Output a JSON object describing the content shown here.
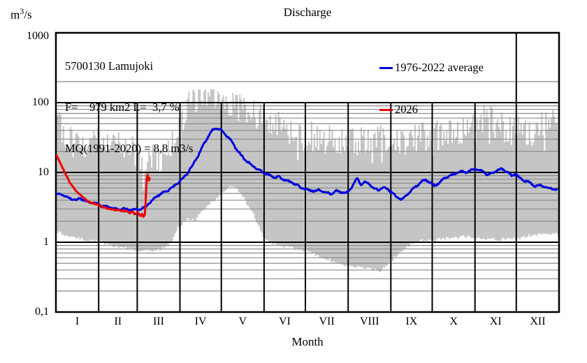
{
  "page": {
    "title": "Discharge"
  },
  "y_axis": {
    "unit": {
      "base": "m",
      "exp": "3",
      "rest": "/s"
    },
    "ticks": [
      {
        "label": "1000",
        "value": 1000
      },
      {
        "label": "100",
        "value": 100
      },
      {
        "label": "10",
        "value": 10
      },
      {
        "label": "1",
        "value": 1
      },
      {
        "label": "0,1",
        "value": 0.1
      }
    ],
    "major_gridlines": [
      100,
      10,
      1
    ],
    "minor_gridlines": [
      0.2,
      0.3,
      0.4,
      0.5,
      0.6,
      0.7,
      0.8,
      0.9,
      2,
      3,
      4,
      5,
      6,
      7,
      8,
      9,
      20,
      30,
      40,
      50,
      60,
      70,
      80,
      90,
      200
    ]
  },
  "x_axis": {
    "label": "Month",
    "month_labels": [
      "I",
      "II",
      "III",
      "IV",
      "V",
      "VI",
      "VII",
      "VIII",
      "IX",
      "X",
      "XI",
      "XII"
    ],
    "month_days": [
      31,
      28,
      31,
      30,
      31,
      30,
      31,
      31,
      30,
      31,
      30,
      31
    ]
  },
  "station_box": {
    "line1": "5700130 Lamujoki",
    "line2": "F=    979 km2 L=  3,7 %",
    "line3": "MQ(1991-2020) = 8,8 m3/s"
  },
  "legend": [
    {
      "label": "1976-2022 average",
      "color": "#0000dd"
    },
    {
      "label": "2026",
      "color": "#ee0000"
    }
  ],
  "colors": {
    "band": "#c5c5c5",
    "minor_grid": "#8a8a8a",
    "major_grid": "#000000",
    "border": "#000000",
    "background": "#ffffff"
  },
  "chart_data": {
    "type": "line",
    "title": "Discharge",
    "ylabel": "m3/s",
    "xlabel": "Month",
    "y_scale": "log",
    "ylim": [
      0.1,
      1000
    ],
    "x_days": 365,
    "band": {
      "name": "1976-2022 min-max range",
      "color": "#c5c5c5",
      "anchors_day_min_max": [
        [
          1,
          1.45,
          58
        ],
        [
          4,
          1.35,
          42
        ],
        [
          8,
          1.25,
          32
        ],
        [
          12,
          1.2,
          27
        ],
        [
          16,
          1.15,
          30
        ],
        [
          20,
          1.1,
          26
        ],
        [
          25,
          1.05,
          23
        ],
        [
          31,
          1.0,
          26
        ],
        [
          36,
          0.95,
          24
        ],
        [
          41,
          0.9,
          27
        ],
        [
          45,
          0.87,
          30
        ],
        [
          50,
          0.84,
          24
        ],
        [
          55,
          0.8,
          20
        ],
        [
          59,
          0.78,
          18
        ],
        [
          64,
          0.76,
          16
        ],
        [
          70,
          0.76,
          15
        ],
        [
          75,
          0.78,
          14
        ],
        [
          80,
          0.85,
          15
        ],
        [
          84,
          1.0,
          20
        ],
        [
          89,
          1.6,
          34
        ],
        [
          93,
          1.9,
          60
        ],
        [
          97,
          2.2,
          85
        ],
        [
          101,
          2.0,
          105
        ],
        [
          105,
          2.6,
          112
        ],
        [
          109,
          3.1,
          118
        ],
        [
          113,
          3.6,
          114
        ],
        [
          118,
          4.3,
          108
        ],
        [
          123,
          5.6,
          98
        ],
        [
          127,
          6.5,
          92
        ],
        [
          131,
          6.0,
          86
        ],
        [
          135,
          5.0,
          80
        ],
        [
          139,
          3.6,
          72
        ],
        [
          143,
          2.7,
          70
        ],
        [
          147,
          1.8,
          62
        ],
        [
          151,
          1.25,
          55
        ],
        [
          155,
          1.0,
          47
        ],
        [
          160,
          0.92,
          40
        ],
        [
          165,
          0.88,
          44
        ],
        [
          170,
          0.85,
          36
        ],
        [
          175,
          0.8,
          32
        ],
        [
          180,
          0.78,
          29
        ],
        [
          185,
          0.74,
          31
        ],
        [
          190,
          0.65,
          27
        ],
        [
          195,
          0.6,
          25
        ],
        [
          200,
          0.55,
          29
        ],
        [
          205,
          0.5,
          25
        ],
        [
          210,
          0.46,
          23
        ],
        [
          215,
          0.44,
          25
        ],
        [
          220,
          0.43,
          24
        ],
        [
          228,
          0.42,
          27
        ],
        [
          236,
          0.38,
          29
        ],
        [
          242,
          0.5,
          26
        ],
        [
          248,
          0.65,
          25
        ],
        [
          254,
          0.85,
          27
        ],
        [
          260,
          1.0,
          29
        ],
        [
          266,
          1.05,
          31
        ],
        [
          272,
          1.05,
          29
        ],
        [
          280,
          1.1,
          33
        ],
        [
          288,
          1.15,
          35
        ],
        [
          296,
          1.2,
          37
        ],
        [
          304,
          1.2,
          40
        ],
        [
          308,
          1.18,
          48
        ],
        [
          312,
          1.15,
          55
        ],
        [
          316,
          1.12,
          52
        ],
        [
          320,
          1.1,
          46
        ],
        [
          328,
          1.1,
          40
        ],
        [
          336,
          1.15,
          38
        ],
        [
          344,
          1.25,
          36
        ],
        [
          350,
          1.3,
          38
        ],
        [
          356,
          1.3,
          55
        ],
        [
          361,
          1.3,
          60
        ],
        [
          365,
          1.3,
          52
        ]
      ]
    },
    "series": [
      {
        "name": "1976-2022 average",
        "color": "#0000dd",
        "width": 3,
        "anchors_day_value": [
          [
            1,
            4.8
          ],
          [
            4,
            5.0
          ],
          [
            8,
            4.4
          ],
          [
            12,
            4.2
          ],
          [
            15,
            4.0
          ],
          [
            18,
            4.3
          ],
          [
            22,
            3.85
          ],
          [
            26,
            3.7
          ],
          [
            30,
            3.55
          ],
          [
            34,
            3.3
          ],
          [
            38,
            3.2
          ],
          [
            42,
            3.05
          ],
          [
            46,
            2.95
          ],
          [
            50,
            3.05
          ],
          [
            54,
            2.9
          ],
          [
            58,
            2.95
          ],
          [
            62,
            3.0
          ],
          [
            65,
            3.15
          ],
          [
            68,
            3.6
          ],
          [
            72,
            4.3
          ],
          [
            76,
            4.9
          ],
          [
            80,
            5.3
          ],
          [
            84,
            5.9
          ],
          [
            88,
            6.8
          ],
          [
            92,
            8.0
          ],
          [
            96,
            9.8
          ],
          [
            100,
            13
          ],
          [
            104,
            18
          ],
          [
            108,
            26
          ],
          [
            111,
            33
          ],
          [
            114,
            40
          ],
          [
            117,
            43.5
          ],
          [
            120,
            41
          ],
          [
            123,
            36
          ],
          [
            126,
            31
          ],
          [
            129,
            26
          ],
          [
            132,
            21
          ],
          [
            135,
            17.5
          ],
          [
            138,
            15
          ],
          [
            141,
            13.5
          ],
          [
            144,
            12.2
          ],
          [
            147,
            11
          ],
          [
            150,
            10.3
          ],
          [
            153,
            9.6
          ],
          [
            156,
            9.0
          ],
          [
            159,
            8.4
          ],
          [
            162,
            8.7
          ],
          [
            165,
            8.0
          ],
          [
            168,
            7.6
          ],
          [
            171,
            7.2
          ],
          [
            174,
            6.9
          ],
          [
            177,
            6.2
          ],
          [
            180,
            5.9
          ],
          [
            184,
            5.6
          ],
          [
            188,
            5.4
          ],
          [
            192,
            5.6
          ],
          [
            196,
            5.2
          ],
          [
            200,
            4.9
          ],
          [
            204,
            5.4
          ],
          [
            208,
            5.2
          ],
          [
            212,
            5.1
          ],
          [
            216,
            6.6
          ],
          [
            219,
            8.2
          ],
          [
            222,
            6.6
          ],
          [
            225,
            7.3
          ],
          [
            228,
            6.9
          ],
          [
            231,
            5.9
          ],
          [
            234,
            5.6
          ],
          [
            238,
            6.1
          ],
          [
            241,
            5.8
          ],
          [
            244,
            5.2
          ],
          [
            248,
            4.4
          ],
          [
            251,
            4.1
          ],
          [
            254,
            4.5
          ],
          [
            257,
            5.2
          ],
          [
            260,
            5.9
          ],
          [
            263,
            6.6
          ],
          [
            266,
            7.4
          ],
          [
            269,
            7.8
          ],
          [
            272,
            7.2
          ],
          [
            275,
            6.4
          ],
          [
            278,
            7.0
          ],
          [
            281,
            7.8
          ],
          [
            284,
            8.6
          ],
          [
            287,
            9.0
          ],
          [
            290,
            9.6
          ],
          [
            294,
            10.4
          ],
          [
            298,
            10.0
          ],
          [
            302,
            10.8
          ],
          [
            306,
            11.2
          ],
          [
            310,
            10.4
          ],
          [
            314,
            9.2
          ],
          [
            317,
            9.7
          ],
          [
            320,
            10.6
          ],
          [
            324,
            11.2
          ],
          [
            328,
            10.2
          ],
          [
            331,
            8.9
          ],
          [
            334,
            9.5
          ],
          [
            337,
            8.3
          ],
          [
            340,
            7.7
          ],
          [
            344,
            7.2
          ],
          [
            348,
            6.4
          ],
          [
            352,
            6.6
          ],
          [
            356,
            6.1
          ],
          [
            360,
            5.9
          ],
          [
            364,
            5.6
          ]
        ]
      },
      {
        "name": "2026",
        "color": "#ee0000",
        "width": 3,
        "anchors_day_value": [
          [
            1,
            17.5
          ],
          [
            3,
            14.5
          ],
          [
            5,
            12
          ],
          [
            7,
            10
          ],
          [
            9,
            8.3
          ],
          [
            11,
            7.0
          ],
          [
            13,
            6.2
          ],
          [
            15,
            5.5
          ],
          [
            17,
            5.0
          ],
          [
            19,
            4.6
          ],
          [
            21,
            4.25
          ],
          [
            24,
            3.85
          ],
          [
            27,
            3.6
          ],
          [
            30,
            3.5
          ],
          [
            33,
            3.3
          ],
          [
            36,
            3.15
          ],
          [
            39,
            3.0
          ],
          [
            42,
            2.95
          ],
          [
            44,
            2.85
          ],
          [
            46,
            2.95
          ],
          [
            48,
            2.8
          ],
          [
            50,
            2.75
          ],
          [
            52,
            2.85
          ],
          [
            54,
            2.6
          ],
          [
            56,
            2.75
          ],
          [
            58,
            2.5
          ],
          [
            60,
            2.7
          ],
          [
            62,
            2.35
          ],
          [
            63,
            2.55
          ],
          [
            64,
            2.3
          ],
          [
            65,
            2.5
          ],
          [
            65.5,
            3.4
          ],
          [
            66,
            5.8
          ],
          [
            66.5,
            8.4
          ],
          [
            67,
            9.3
          ],
          [
            67.5,
            8.1
          ],
          [
            68,
            7.7
          ],
          [
            68.5,
            8.3
          ]
        ]
      }
    ],
    "texture_seed": 20260307,
    "max_jitter_log10": 0.44,
    "min_jitter_log10": 0.05,
    "max_clamp": 155,
    "min_clamp": 0.3
  }
}
